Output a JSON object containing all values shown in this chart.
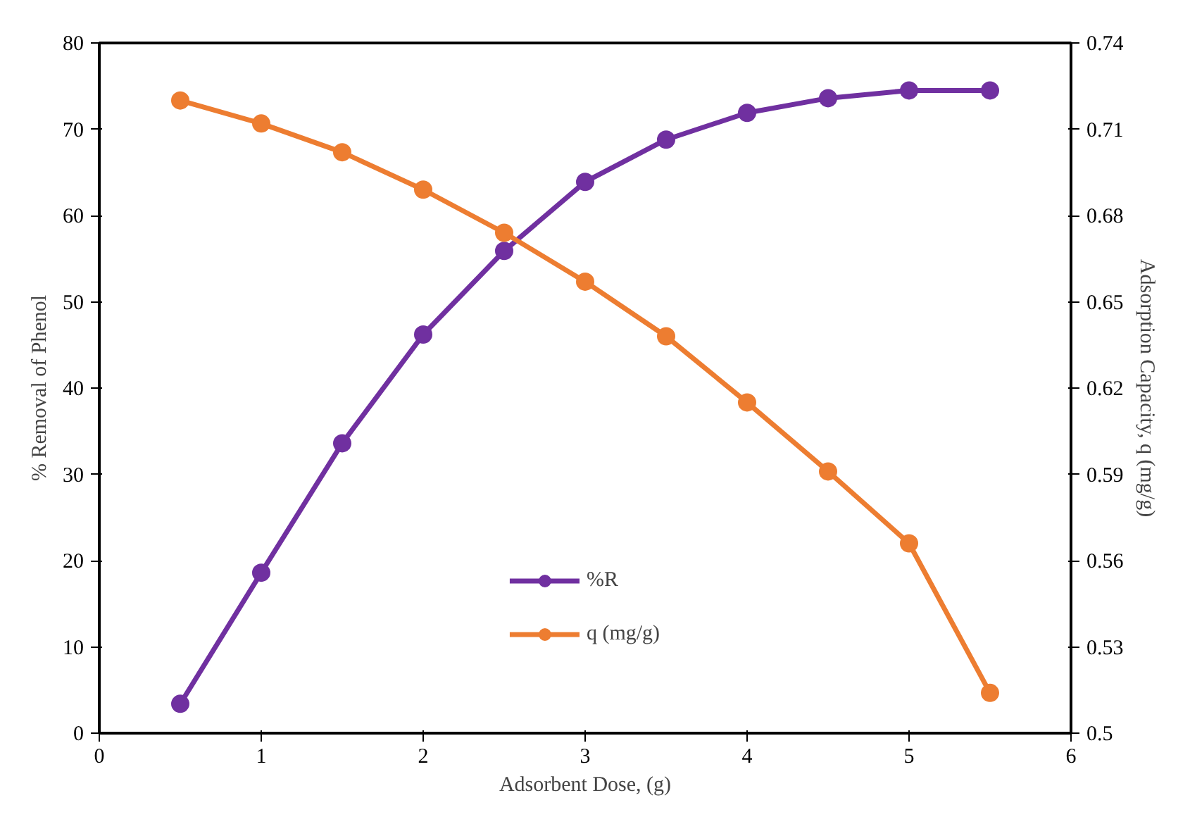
{
  "chart_data": {
    "type": "line",
    "xlabel": "Adsorbent Dose, (g)",
    "ylabel": "% Removal of Phenol",
    "y2label": "Adsorption Capacity, q (mg/g)",
    "x": [
      0.5,
      1,
      1.5,
      2,
      2.5,
      3,
      3.5,
      4,
      4.5,
      5,
      5.5
    ],
    "series": [
      {
        "name": "%R",
        "color": "#7030a0",
        "values": [
          3.4,
          18.6,
          33.6,
          46.2,
          55.9,
          63.9,
          68.8,
          71.9,
          73.6,
          74.5,
          74.5
        ]
      },
      {
        "name": "q (mg/g)",
        "color": "#ed7d31",
        "axis": "y2",
        "values": [
          0.72,
          0.712,
          0.702,
          0.689,
          0.674,
          0.657,
          0.638,
          0.615,
          0.591,
          0.566,
          0.514
        ]
      }
    ],
    "xlim": [
      0,
      6
    ],
    "xticks": [
      0,
      1,
      2,
      3,
      4,
      5,
      6
    ],
    "ylim": [
      0,
      80
    ],
    "yticks": [
      0,
      10,
      20,
      30,
      40,
      50,
      60,
      70,
      80
    ],
    "y2lim": [
      0.5,
      0.74
    ],
    "y2ticks": [
      0.5,
      0.53,
      0.56,
      0.59,
      0.62,
      0.65,
      0.68,
      0.71,
      0.74
    ],
    "grid": false,
    "legend": "bottom",
    "marker": "circle",
    "line_style": "solid"
  }
}
